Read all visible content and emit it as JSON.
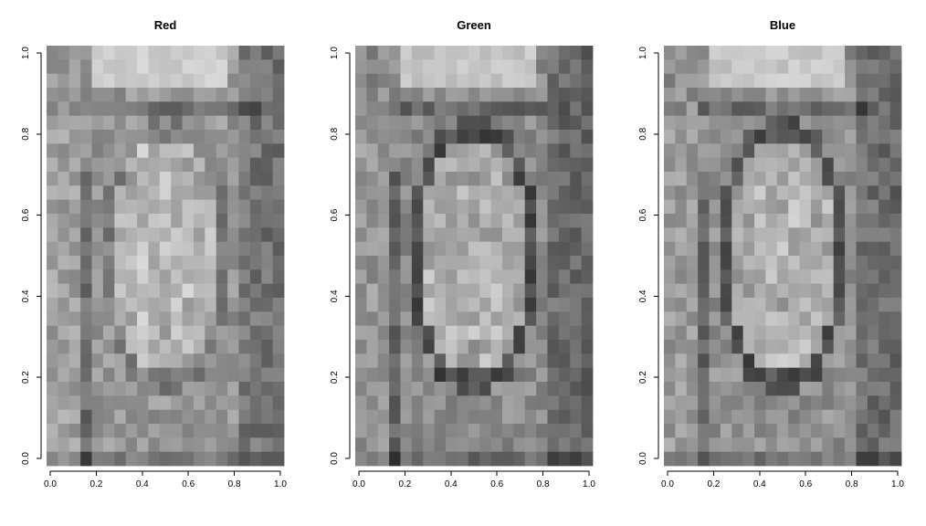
{
  "chart_data": [
    {
      "type": "heatmap",
      "title": "Red",
      "xlabel": "",
      "ylabel": "",
      "xlim": [
        0,
        1
      ],
      "ylim": [
        0,
        1
      ],
      "xticks": [
        "0.0",
        "0.2",
        "0.4",
        "0.6",
        "0.8",
        "1.0"
      ],
      "yticks": [
        "0.0",
        "0.2",
        "0.4",
        "0.6",
        "0.8",
        "1.0"
      ],
      "colormap": "grayscale",
      "grid_cols": 21,
      "grid_rows": 30,
      "channel_bias": 0
    },
    {
      "type": "heatmap",
      "title": "Green",
      "xlabel": "",
      "ylabel": "",
      "xlim": [
        0,
        1
      ],
      "ylim": [
        0,
        1
      ],
      "xticks": [
        "0.0",
        "0.2",
        "0.4",
        "0.6",
        "0.8",
        "1.0"
      ],
      "yticks": [
        "0.0",
        "0.2",
        "0.4",
        "0.6",
        "0.8",
        "1.0"
      ],
      "colormap": "grayscale",
      "grid_cols": 21,
      "grid_rows": 30,
      "channel_bias": -10
    },
    {
      "type": "heatmap",
      "title": "Blue",
      "xlabel": "",
      "ylabel": "",
      "xlim": [
        0,
        1
      ],
      "ylim": [
        0,
        1
      ],
      "xticks": [
        "0.0",
        "0.2",
        "0.4",
        "0.6",
        "0.8",
        "1.0"
      ],
      "yticks": [
        "0.0",
        "0.2",
        "0.4",
        "0.6",
        "0.8",
        "1.0"
      ],
      "colormap": "grayscale",
      "grid_cols": 21,
      "grid_rows": 30,
      "channel_bias": -6
    }
  ]
}
